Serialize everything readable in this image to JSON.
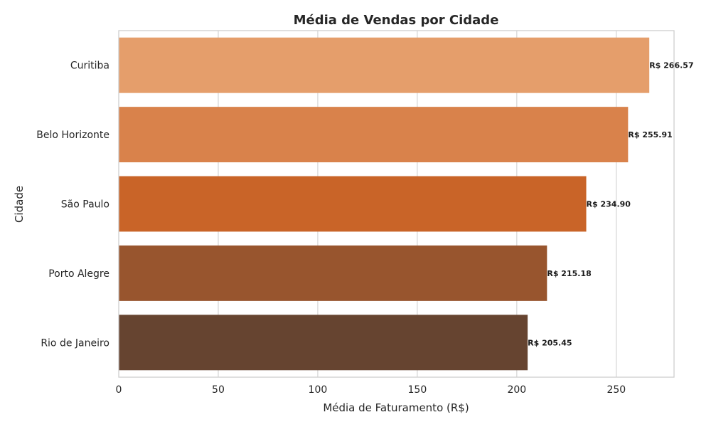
{
  "chart_data": {
    "type": "bar",
    "orientation": "horizontal",
    "title": "Média de Vendas por Cidade",
    "xlabel": "Média de Faturamento (R$)",
    "ylabel": "Cidade",
    "categories": [
      "Curitiba",
      "Belo Horizonte",
      "São Paulo",
      "Porto Alegre",
      "Rio de Janeiro"
    ],
    "values": [
      266.57,
      255.91,
      234.9,
      215.18,
      205.45
    ],
    "data_labels": [
      "R$ 266.57",
      "R$ 255.91",
      "R$ 234.90",
      "R$ 215.18",
      "R$ 205.45"
    ],
    "colors": [
      "#e59e6b",
      "#d9824b",
      "#c96428",
      "#98552e",
      "#664430"
    ],
    "xlim": [
      0,
      279
    ],
    "xticks": [
      0,
      50,
      100,
      150,
      200,
      250
    ],
    "grid": true,
    "legend": "none"
  }
}
